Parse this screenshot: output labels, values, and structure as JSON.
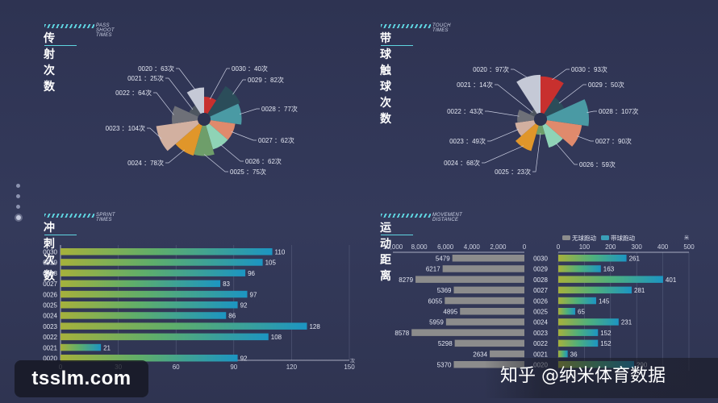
{
  "panels": {
    "pass": {
      "title": "传射次数",
      "subtitle": "PASS SHOOT TIMES"
    },
    "touch": {
      "title": "带球触球次数",
      "subtitle": "TOUCH TIMES"
    },
    "sprint": {
      "title": "冲刺次数",
      "subtitle": "SPRINT TIMES"
    },
    "distance": {
      "title": "运动距离",
      "subtitle": "MOVEMENT DISTANCE"
    }
  },
  "watermarks": {
    "left": "tsslm.com",
    "right": "知乎 @纳米体育数据"
  },
  "chart_data": [
    {
      "id": "pass",
      "type": "pie",
      "title": "传射次数",
      "categories": [
        "0030",
        "0029",
        "0028",
        "0027",
        "0026",
        "0025",
        "0024",
        "0023",
        "0022",
        "0021",
        "0020"
      ],
      "values": [
        40,
        82,
        77,
        62,
        62,
        75,
        78,
        104,
        64,
        25,
        63
      ],
      "labels": [
        "0030 ：40次",
        "0029 ：82次",
        "0028 ：77次",
        "0027 ：62次",
        "0026 ：62次",
        "0025 ：75次",
        "0024 ：78次",
        "0023 ：104次",
        "0022 ：64次",
        "0021 ：25次",
        "0020 ：63次"
      ],
      "colors": [
        "#c8302e",
        "#2b4d5a",
        "#4a9aa4",
        "#e08a6c",
        "#8fd3b6",
        "#6e9e6a",
        "#e0962a",
        "#d2b0a0",
        "#6e7078",
        "#4e5660",
        "#c5c9d6"
      ]
    },
    {
      "id": "touch",
      "type": "pie",
      "title": "带球触球次数",
      "categories": [
        "0030",
        "0029",
        "0028",
        "0027",
        "0026",
        "0025",
        "0024",
        "0023",
        "0022",
        "0021",
        "0020"
      ],
      "values": [
        93,
        50,
        107,
        90,
        59,
        23,
        68,
        49,
        43,
        14,
        97
      ],
      "labels": [
        "0030 ：93次",
        "0029 ：50次",
        "0028 ：107次",
        "0027 ：90次",
        "0026 ：59次",
        "0025 ：23次",
        "0024 ：68次",
        "0023 ：49次",
        "0022 ：43次",
        "0021 ：14次",
        "0020 ：97次"
      ],
      "colors": [
        "#c8302e",
        "#2b4d5a",
        "#4a9aa4",
        "#e08a6c",
        "#8fd3b6",
        "#6e9e6a",
        "#e0962a",
        "#d2b0a0",
        "#6e7078",
        "#4e5660",
        "#c5c9d6"
      ]
    },
    {
      "id": "sprint",
      "type": "bar",
      "title": "冲刺次数",
      "categories": [
        "0030",
        "0029",
        "0028",
        "0027",
        "0026",
        "0025",
        "0024",
        "0023",
        "0022",
        "0021",
        "0020"
      ],
      "values": [
        110,
        105,
        96,
        83,
        97,
        92,
        86,
        128,
        108,
        21,
        92
      ],
      "xlim": [
        0,
        150
      ],
      "xticks": [
        0,
        30,
        60,
        90,
        120,
        150
      ],
      "xunit": "次",
      "grid": true
    },
    {
      "id": "distance",
      "type": "bar",
      "title": "运动距离",
      "categories": [
        "0030",
        "0029",
        "0028",
        "0027",
        "0026",
        "0025",
        "0024",
        "0023",
        "0022",
        "0021",
        "0020"
      ],
      "series": [
        {
          "name": "无球跑动",
          "values": [
            5479,
            6217,
            8279,
            5369,
            6055,
            4895,
            5959,
            8578,
            5298,
            2634,
            5370
          ],
          "color": "#8c8c8c",
          "xlim": [
            0,
            10000
          ],
          "xticks": [
            "10,000",
            "8,000",
            "6,000",
            "4,000",
            "2,000",
            "0"
          ]
        },
        {
          "name": "带球跑动",
          "values": [
            261,
            163,
            401,
            281,
            145,
            65,
            231,
            152,
            152,
            36,
            290
          ],
          "color": "#3a9fb8",
          "xlim": [
            0,
            500
          ],
          "xticks": [
            "0",
            "100",
            "200",
            "300",
            "400",
            "500"
          ],
          "xunit": "米"
        }
      ],
      "legend": "top"
    }
  ]
}
